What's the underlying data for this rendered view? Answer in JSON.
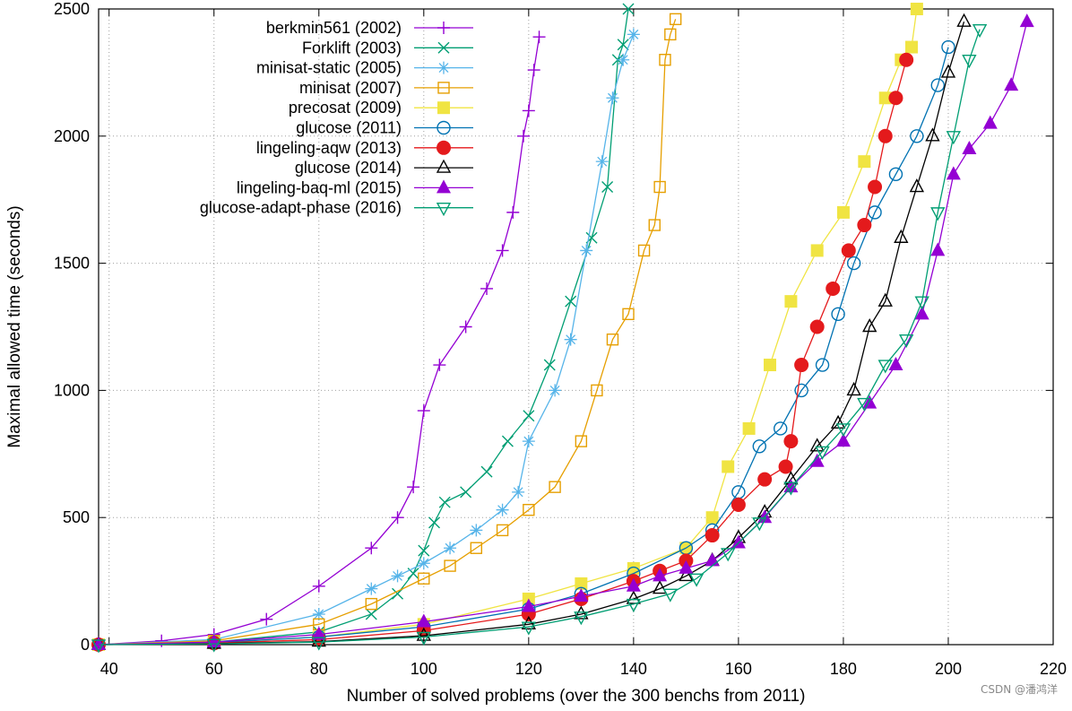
{
  "chart_data": {
    "type": "line",
    "title": "",
    "xlabel": "Number of solved problems (over the 300 benchs from 2011)",
    "ylabel": "Maximal allowed time (seconds)",
    "xlim": [
      38,
      220
    ],
    "ylim": [
      0,
      2500
    ],
    "xticks": [
      40,
      60,
      80,
      100,
      120,
      140,
      160,
      180,
      200,
      220
    ],
    "yticks": [
      0,
      500,
      1000,
      1500,
      2000,
      2500
    ],
    "grid": true,
    "legend_position": "top-left",
    "series": [
      {
        "name": "berkmin561 (2002)",
        "color": "#9400d3",
        "marker": "plus",
        "x": [
          38,
          50,
          60,
          70,
          80,
          90,
          95,
          98,
          100,
          103,
          108,
          112,
          115,
          117,
          119,
          120,
          121,
          122
        ],
        "y": [
          0,
          15,
          40,
          100,
          230,
          380,
          500,
          620,
          920,
          1100,
          1250,
          1400,
          1550,
          1700,
          2000,
          2100,
          2260,
          2390
        ]
      },
      {
        "name": "Forklift (2003)",
        "color": "#009e73",
        "marker": "x",
        "x": [
          38,
          60,
          80,
          90,
          95,
          98,
          100,
          102,
          104,
          108,
          112,
          116,
          120,
          124,
          128,
          132,
          135,
          137,
          138,
          139
        ],
        "y": [
          0,
          10,
          50,
          120,
          200,
          280,
          370,
          480,
          560,
          600,
          680,
          800,
          900,
          1100,
          1350,
          1600,
          1800,
          2300,
          2360,
          2500
        ]
      },
      {
        "name": "minisat-static (2005)",
        "color": "#56b4e9",
        "marker": "star",
        "x": [
          38,
          60,
          80,
          90,
          95,
          100,
          105,
          110,
          115,
          118,
          120,
          125,
          128,
          131,
          134,
          136,
          138,
          140
        ],
        "y": [
          0,
          20,
          120,
          220,
          270,
          320,
          380,
          450,
          530,
          600,
          800,
          1000,
          1200,
          1550,
          1900,
          2150,
          2300,
          2400
        ]
      },
      {
        "name": "minisat (2007)",
        "color": "#e69f00",
        "marker": "square",
        "x": [
          38,
          60,
          80,
          90,
          100,
          105,
          110,
          115,
          120,
          125,
          130,
          133,
          136,
          139,
          142,
          144,
          145,
          146,
          147,
          148
        ],
        "y": [
          0,
          15,
          80,
          160,
          260,
          310,
          380,
          450,
          530,
          620,
          800,
          1000,
          1200,
          1300,
          1550,
          1650,
          1800,
          2300,
          2400,
          2460
        ]
      },
      {
        "name": "precosat (2009)",
        "color": "#f0e442",
        "marker": "filled-square",
        "x": [
          38,
          60,
          80,
          100,
          120,
          130,
          140,
          150,
          155,
          158,
          162,
          166,
          170,
          175,
          180,
          184,
          188,
          191,
          193,
          194
        ],
        "y": [
          0,
          8,
          30,
          80,
          180,
          240,
          300,
          380,
          500,
          700,
          850,
          1100,
          1350,
          1550,
          1700,
          1900,
          2150,
          2300,
          2350,
          2500
        ]
      },
      {
        "name": "glucose (2011)",
        "color": "#0072b2",
        "marker": "circle",
        "x": [
          38,
          60,
          80,
          100,
          120,
          130,
          140,
          150,
          155,
          160,
          164,
          168,
          172,
          176,
          179,
          182,
          186,
          190,
          194,
          198,
          200
        ],
        "y": [
          0,
          8,
          30,
          70,
          140,
          200,
          280,
          380,
          450,
          600,
          780,
          850,
          1000,
          1100,
          1300,
          1500,
          1700,
          1850,
          2000,
          2200,
          2350
        ]
      },
      {
        "name": "lingeling-aqw (2013)",
        "color": "#e41a1c",
        "marker": "filled-circle",
        "x": [
          38,
          60,
          80,
          100,
          120,
          130,
          140,
          145,
          150,
          155,
          160,
          165,
          169,
          170,
          172,
          175,
          178,
          181,
          184,
          186,
          188,
          190,
          192
        ],
        "y": [
          0,
          6,
          20,
          55,
          120,
          180,
          250,
          290,
          330,
          430,
          550,
          650,
          700,
          800,
          1100,
          1250,
          1400,
          1550,
          1650,
          1800,
          2000,
          2150,
          2300
        ]
      },
      {
        "name": "glucose (2014)",
        "color": "#000000",
        "marker": "triangle",
        "x": [
          38,
          60,
          80,
          100,
          120,
          130,
          140,
          145,
          150,
          155,
          160,
          165,
          170,
          175,
          179,
          182,
          185,
          188,
          191,
          194,
          197,
          200,
          203
        ],
        "y": [
          0,
          4,
          12,
          35,
          80,
          120,
          180,
          220,
          270,
          330,
          420,
          520,
          650,
          780,
          870,
          1000,
          1250,
          1350,
          1600,
          1800,
          2000,
          2250,
          2450
        ]
      },
      {
        "name": "lingeling-baq-ml (2015)",
        "color": "#9400d3",
        "marker": "filled-triangle",
        "x": [
          38,
          60,
          80,
          100,
          120,
          130,
          140,
          145,
          150,
          155,
          160,
          165,
          170,
          175,
          180,
          185,
          190,
          195,
          198,
          201,
          204,
          208,
          212,
          215
        ],
        "y": [
          0,
          10,
          40,
          90,
          150,
          190,
          230,
          270,
          300,
          330,
          400,
          500,
          620,
          720,
          800,
          950,
          1100,
          1300,
          1550,
          1850,
          1950,
          2050,
          2200,
          2450
        ]
      },
      {
        "name": "glucose-adapt-phase (2016)",
        "color": "#009e73",
        "marker": "triangle-down",
        "x": [
          38,
          60,
          80,
          100,
          120,
          130,
          140,
          147,
          152,
          158,
          164,
          170,
          176,
          180,
          184,
          188,
          192,
          195,
          198,
          201,
          204,
          206
        ],
        "y": [
          0,
          3,
          10,
          30,
          70,
          110,
          160,
          200,
          260,
          360,
          480,
          620,
          760,
          850,
          950,
          1100,
          1200,
          1350,
          1700,
          2000,
          2300,
          2420
        ]
      }
    ]
  },
  "watermark": "CSDN @潘鸿洋"
}
